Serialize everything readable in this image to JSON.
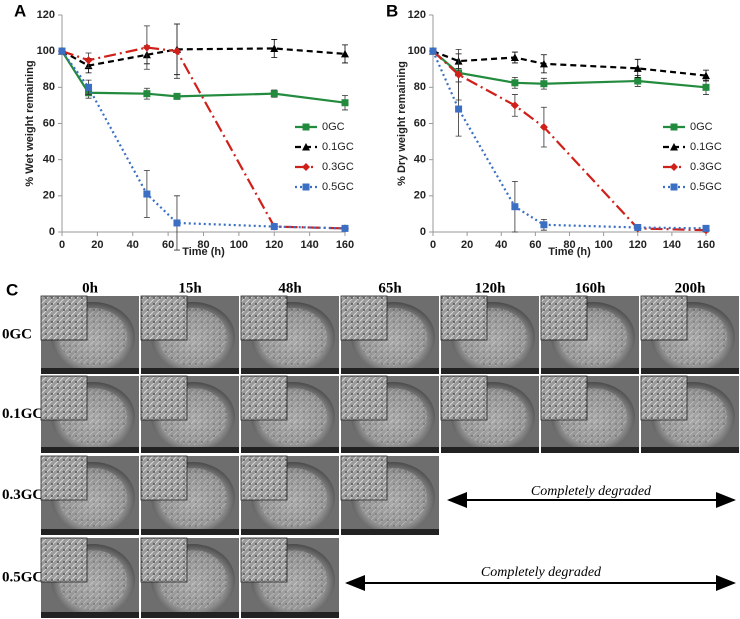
{
  "chart_data": [
    {
      "type": "line",
      "panel": "A",
      "xlabel": "Time (h)",
      "ylabel": "% Wet weight remaining",
      "x": [
        0,
        15,
        48,
        65,
        120,
        160
      ],
      "xlim": [
        0,
        160
      ],
      "xticks": [
        0,
        20,
        40,
        60,
        80,
        100,
        120,
        140,
        160
      ],
      "ylim": [
        0,
        120
      ],
      "yticks": [
        0,
        20,
        40,
        60,
        80,
        100,
        120
      ],
      "legend": "right",
      "series": [
        {
          "name": "0GC",
          "color": "#238b3e",
          "dash": "none",
          "marker": "square",
          "values": [
            100,
            77,
            76.5,
            75,
            76.5,
            71.5
          ],
          "errors": [
            1,
            3,
            3,
            1,
            2,
            4
          ]
        },
        {
          "name": "0.1GC",
          "color": "#000000",
          "dash": "6 4",
          "marker": "triangle",
          "values": [
            100,
            92,
            98,
            101,
            101.5,
            98.5
          ],
          "errors": [
            1,
            4,
            5,
            14,
            5,
            5
          ]
        },
        {
          "name": "0.3GC",
          "color": "#d0201a",
          "dash": "12 4 2 4",
          "marker": "diamond",
          "values": [
            100,
            95,
            102,
            100,
            3,
            2
          ],
          "errors": [
            1,
            4,
            12,
            15,
            1,
            1
          ]
        },
        {
          "name": "0.5GC",
          "color": "#3a6fc4",
          "dash": "2 3",
          "marker": "square",
          "values": [
            100,
            80,
            21,
            5,
            3,
            2
          ],
          "errors": [
            1,
            4,
            13,
            15,
            1,
            1
          ]
        }
      ]
    },
    {
      "type": "line",
      "panel": "B",
      "xlabel": "Time (h)",
      "ylabel": "% Dry weight remaining",
      "x": [
        0,
        15,
        48,
        65,
        120,
        160
      ],
      "xlim": [
        0,
        160
      ],
      "xticks": [
        0,
        20,
        40,
        60,
        80,
        100,
        120,
        140,
        160
      ],
      "ylim": [
        0,
        120
      ],
      "yticks": [
        0,
        20,
        40,
        60,
        80,
        100,
        120
      ],
      "legend": "right",
      "series": [
        {
          "name": "0GC",
          "color": "#238b3e",
          "dash": "none",
          "marker": "square",
          "values": [
            100,
            88,
            82.5,
            82,
            83.5,
            80
          ],
          "errors": [
            1,
            5,
            3,
            3,
            3,
            4
          ]
        },
        {
          "name": "0.1GC",
          "color": "#000000",
          "dash": "6 4",
          "marker": "triangle",
          "values": [
            100,
            94.5,
            96.5,
            93,
            90.5,
            86.5
          ],
          "errors": [
            1,
            4,
            3,
            5,
            5,
            3
          ]
        },
        {
          "name": "0.3GC",
          "color": "#d0201a",
          "dash": "12 4 2 4",
          "marker": "diamond",
          "values": [
            100,
            87,
            70,
            58,
            2,
            1
          ],
          "errors": [
            1,
            14,
            6,
            11,
            1,
            1
          ]
        },
        {
          "name": "0.5GC",
          "color": "#3a6fc4",
          "dash": "2 3",
          "marker": "square",
          "values": [
            100,
            68,
            14,
            4,
            2.5,
            2
          ],
          "errors": [
            1,
            15,
            14,
            3,
            1,
            1
          ]
        }
      ]
    }
  ],
  "sem": {
    "panel": "C",
    "columns": [
      "0h",
      "15h",
      "48h",
      "65h",
      "120h",
      "160h",
      "200h"
    ],
    "rows": [
      "0GC",
      "0.1GC",
      "0.3GC",
      "0.5GC"
    ],
    "note": "Completely degraded"
  }
}
